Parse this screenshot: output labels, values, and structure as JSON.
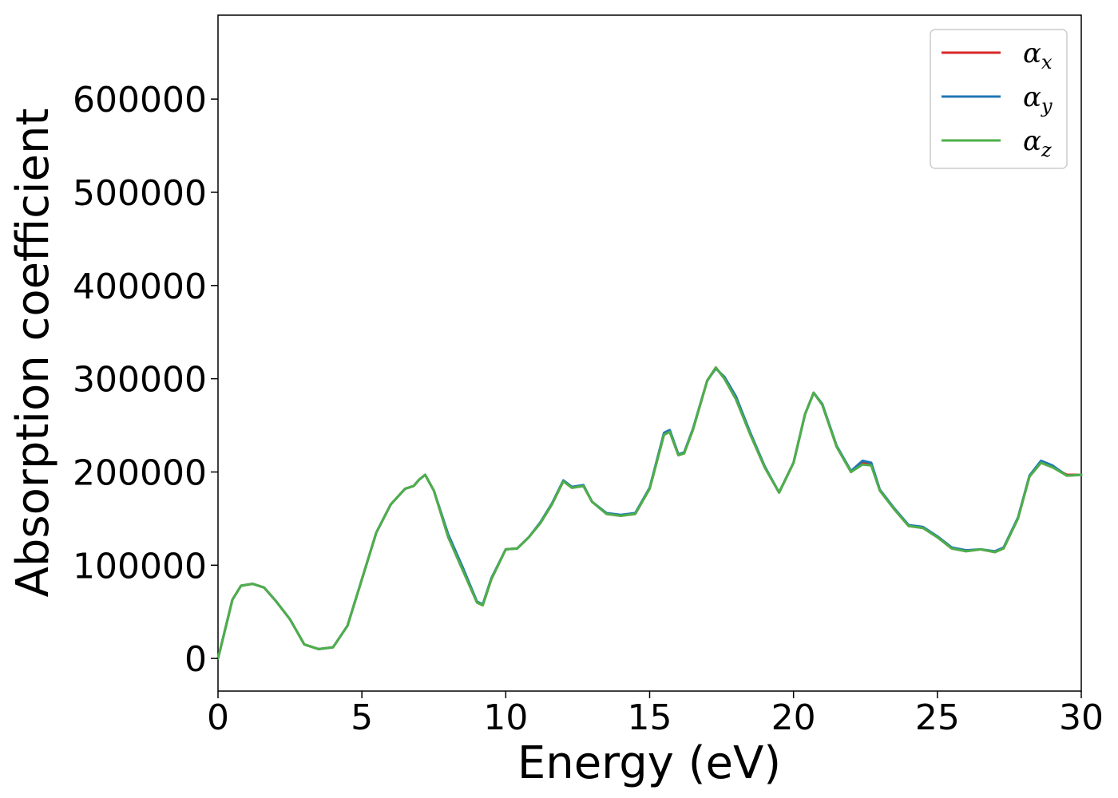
{
  "chart_data": {
    "type": "line",
    "title": "",
    "xlabel": "Energy (eV)",
    "ylabel": "Absorption coefficient",
    "xlim": [
      0,
      30
    ],
    "ylim": [
      -35000,
      690000
    ],
    "xticks": [
      0,
      5,
      10,
      15,
      20,
      25,
      30
    ],
    "xtick_labels": [
      "0",
      "5",
      "10",
      "15",
      "20",
      "25",
      "30"
    ],
    "yticks": [
      0,
      100000,
      200000,
      300000,
      400000,
      500000,
      600000
    ],
    "ytick_labels": [
      "0",
      "100000",
      "200000",
      "300000",
      "400000",
      "500000",
      "600000"
    ],
    "grid": false,
    "legend_position": "top-right",
    "series": [
      {
        "name": "α",
        "subscript": "x",
        "color": "#d62728",
        "x": [
          0,
          0.2,
          0.5,
          0.8,
          1.2,
          1.6,
          2.0,
          2.5,
          3.0,
          3.5,
          4.0,
          4.5,
          5.0,
          5.5,
          6.0,
          6.5,
          6.8,
          7.0,
          7.2,
          7.5,
          8.0,
          8.5,
          9.0,
          9.2,
          9.5,
          10.0,
          10.4,
          10.8,
          11.2,
          11.6,
          12.0,
          12.3,
          12.7,
          13.0,
          13.5,
          14.0,
          14.5,
          15.0,
          15.5,
          15.7,
          16.0,
          16.2,
          16.5,
          17.0,
          17.3,
          17.6,
          18.0,
          18.5,
          19.0,
          19.5,
          20.0,
          20.4,
          20.7,
          21.0,
          21.5,
          22.0,
          22.4,
          22.7,
          23.0,
          23.5,
          24.0,
          24.5,
          25.0,
          25.5,
          26.0,
          26.5,
          27.0,
          27.3,
          27.8,
          28.2,
          28.6,
          29.0,
          29.5,
          30.0
        ],
        "values": [
          0,
          25000,
          63000,
          78000,
          80000,
          76000,
          62000,
          42000,
          15000,
          10000,
          12000,
          35000,
          85000,
          135000,
          165000,
          182000,
          185000,
          192000,
          197000,
          180000,
          130000,
          95000,
          60000,
          57000,
          85000,
          117000,
          118000,
          130000,
          145000,
          165000,
          190000,
          183000,
          185000,
          168000,
          155000,
          153000,
          155000,
          182000,
          240000,
          243000,
          218000,
          220000,
          245000,
          298000,
          312000,
          300000,
          278000,
          240000,
          205000,
          178000,
          210000,
          262000,
          285000,
          272000,
          227000,
          200000,
          210000,
          208000,
          180000,
          160000,
          142000,
          140000,
          130000,
          118000,
          115000,
          117000,
          114000,
          118000,
          150000,
          195000,
          210000,
          205000,
          197000,
          197000
        ]
      },
      {
        "name": "α",
        "subscript": "y",
        "color": "#1f77b4",
        "x": [
          0,
          0.2,
          0.5,
          0.8,
          1.2,
          1.6,
          2.0,
          2.5,
          3.0,
          3.5,
          4.0,
          4.5,
          5.0,
          5.5,
          6.0,
          6.5,
          6.8,
          7.0,
          7.2,
          7.5,
          8.0,
          8.5,
          9.0,
          9.2,
          9.5,
          10.0,
          10.4,
          10.8,
          11.2,
          11.6,
          12.0,
          12.3,
          12.7,
          13.0,
          13.5,
          14.0,
          14.5,
          15.0,
          15.5,
          15.7,
          16.0,
          16.2,
          16.5,
          17.0,
          17.3,
          17.6,
          18.0,
          18.5,
          19.0,
          19.5,
          20.0,
          20.4,
          20.7,
          21.0,
          21.5,
          22.0,
          22.4,
          22.7,
          23.0,
          23.5,
          24.0,
          24.5,
          25.0,
          25.5,
          26.0,
          26.5,
          27.0,
          27.3,
          27.8,
          28.2,
          28.6,
          29.0,
          29.5,
          30.0
        ],
        "values": [
          0,
          25000,
          63000,
          78000,
          80000,
          76000,
          62000,
          42000,
          15000,
          10000,
          12000,
          35000,
          85000,
          135000,
          165000,
          182000,
          185000,
          192000,
          197000,
          180000,
          133000,
          98000,
          61000,
          58000,
          86000,
          117000,
          118000,
          130000,
          146000,
          166000,
          191000,
          184000,
          186000,
          168000,
          156000,
          154000,
          156000,
          183000,
          242000,
          245000,
          219000,
          221000,
          246000,
          298000,
          311000,
          302000,
          281000,
          242000,
          206000,
          178000,
          210000,
          262000,
          285000,
          273000,
          228000,
          201000,
          212000,
          210000,
          181000,
          161000,
          143000,
          141000,
          131000,
          119000,
          116000,
          117000,
          115000,
          119000,
          151000,
          196000,
          212000,
          207000,
          196000,
          197000
        ]
      },
      {
        "name": "α",
        "subscript": "z",
        "color": "#4daf4a",
        "x": [
          0,
          0.2,
          0.5,
          0.8,
          1.2,
          1.6,
          2.0,
          2.5,
          3.0,
          3.5,
          4.0,
          4.5,
          5.0,
          5.5,
          6.0,
          6.5,
          6.8,
          7.0,
          7.2,
          7.5,
          8.0,
          8.5,
          9.0,
          9.2,
          9.5,
          10.0,
          10.4,
          10.8,
          11.2,
          11.6,
          12.0,
          12.3,
          12.7,
          13.0,
          13.5,
          14.0,
          14.5,
          15.0,
          15.5,
          15.7,
          16.0,
          16.2,
          16.5,
          17.0,
          17.3,
          17.6,
          18.0,
          18.5,
          19.0,
          19.5,
          20.0,
          20.4,
          20.7,
          21.0,
          21.5,
          22.0,
          22.4,
          22.7,
          23.0,
          23.5,
          24.0,
          24.5,
          25.0,
          25.5,
          26.0,
          26.5,
          27.0,
          27.3,
          27.8,
          28.2,
          28.6,
          29.0,
          29.5,
          30.0
        ],
        "values": [
          0,
          25000,
          63000,
          78000,
          80000,
          76000,
          62000,
          42000,
          15000,
          10000,
          12000,
          35000,
          85000,
          135000,
          165000,
          182000,
          185000,
          192000,
          197000,
          180000,
          130000,
          95000,
          60000,
          57000,
          85000,
          117000,
          118000,
          130000,
          145000,
          165000,
          190000,
          183000,
          185000,
          168000,
          155000,
          153000,
          155000,
          182000,
          240000,
          243000,
          218000,
          220000,
          245000,
          298000,
          312000,
          300000,
          278000,
          240000,
          205000,
          178000,
          210000,
          262000,
          285000,
          272000,
          227000,
          200000,
          208000,
          207000,
          180000,
          160000,
          142000,
          140000,
          130000,
          118000,
          115000,
          117000,
          114000,
          118000,
          150000,
          195000,
          210000,
          205000,
          196000,
          197000
        ]
      }
    ]
  }
}
